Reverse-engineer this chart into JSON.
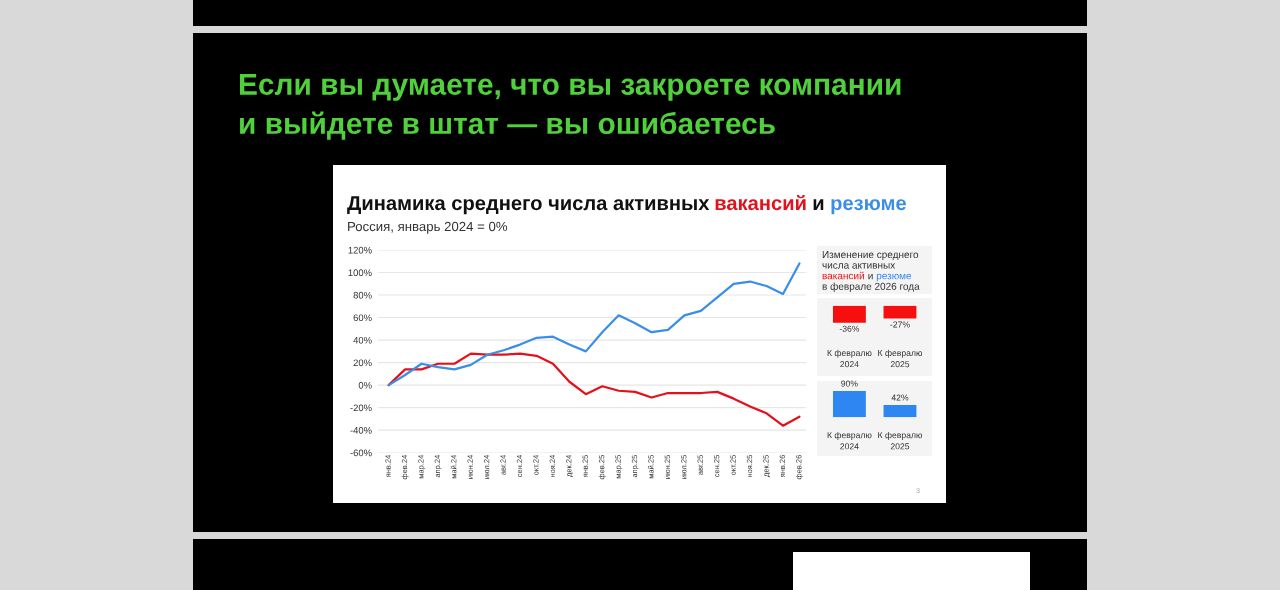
{
  "chart_data": [
    {
      "type": "line",
      "title": "Динамика среднего числа активных вакансий и резюме",
      "subtitle": "Россия, январь 2024 = 0%",
      "annotations": [
        "Если вы думаете, что вы закроете компании\nи выйдете в штат — вы ошибаетесь",
        "3"
      ],
      "categories": [
        "янв.24",
        "фев.24",
        "мар.24",
        "апр.24",
        "май.24",
        "июн.24",
        "июл.24",
        "авг.24",
        "сен.24",
        "окт.24",
        "ноя.24",
        "дек.24",
        "янв.25",
        "фев.25",
        "мар.25",
        "апр.25",
        "май.25",
        "июн.25",
        "июл.25",
        "авг.25",
        "сен.25",
        "окт.25",
        "ноя.25",
        "дек.25",
        "янв.26",
        "фев.26"
      ],
      "series": [
        {
          "color": "#e3111b",
          "values": [
            0,
            14,
            14,
            19,
            19,
            28,
            27,
            27,
            28,
            26,
            19,
            3,
            -8,
            -1,
            -5,
            -6,
            -11,
            -7,
            -7,
            -7,
            -6,
            -12,
            -19,
            -25,
            -36,
            -28
          ]
        },
        {
          "color": "#3a8ee8",
          "values": [
            0,
            9,
            19,
            16,
            14,
            18,
            27,
            31,
            36,
            42,
            43,
            36,
            30,
            47,
            62,
            55,
            47,
            49,
            62,
            66,
            78,
            90,
            92,
            88,
            81,
            108
          ]
        }
      ],
      "ylim": [
        -60,
        120
      ],
      "yticks": [
        {
          "value": -60,
          "label": "-60%"
        },
        {
          "value": -40,
          "label": "-40%"
        },
        {
          "value": -20,
          "label": "-20%"
        },
        {
          "value": 0,
          "label": "0%"
        },
        {
          "value": 20,
          "label": "20%"
        },
        {
          "value": 40,
          "label": "40%"
        },
        {
          "value": 60,
          "label": "60%"
        },
        {
          "value": 80,
          "label": "80%"
        },
        {
          "value": 100,
          "label": "100%"
        },
        {
          "value": 120,
          "label": "120%"
        }
      ],
      "grid": "y"
    },
    {
      "type": "bar",
      "title": "Изменение среднего\nчисла активных\nвакансий и резюме\nв феврале 2026 года",
      "categories": [
        "К февралю\n2024",
        "К февралю\n2025"
      ],
      "series": [
        {
          "color": "#f50f0f",
          "values": [
            -36,
            -27
          ],
          "value_labels": [
            "-36%",
            "-27%"
          ]
        }
      ],
      "tick_labels": "x"
    },
    {
      "type": "bar",
      "categories": [
        "К февралю\n2024",
        "К февралю\n2025"
      ],
      "series": [
        {
          "color": "#2e86f2",
          "values": [
            90,
            42
          ],
          "value_labels": [
            "90%",
            "42%"
          ]
        }
      ],
      "tick_labels": "x"
    }
  ]
}
